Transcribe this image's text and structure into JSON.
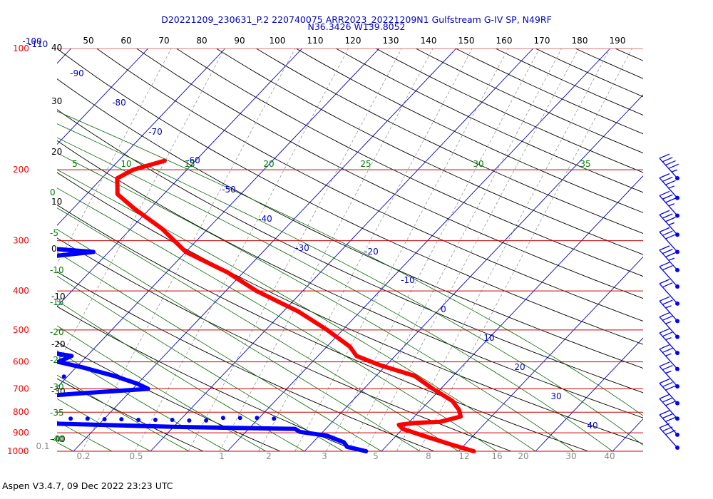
{
  "title": {
    "line1": "D20221209_230631_P.2 220740075 ARR2023_20221209N1 Gulfstream G-IV SP, N49RF",
    "line2": "N36.3426 W139.8052"
  },
  "footer": "Aspen V3.4.7, 09 Dec 2022  23:23 UTC",
  "colors": {
    "temperature": "#ff0000",
    "dewpoint": "#0000ff",
    "isobar": "#cc0000",
    "isotherm": "#0000cc",
    "dry_adiabat": "#000000",
    "moist_adiabat": "#006600",
    "mixing_ratio": "#888888",
    "title": "#0000cc"
  },
  "chart_data": {
    "type": "line",
    "chart_kind": "skew-T log-P sounding",
    "y_axis": {
      "quantity": "pressure (hPa)",
      "scale": "log",
      "range": [
        100,
        1000
      ]
    },
    "isobars": [
      {
        "p": 100,
        "label": "100"
      },
      {
        "p": 200,
        "label": "200"
      },
      {
        "p": 300,
        "label": "300"
      },
      {
        "p": 400,
        "label": "400"
      },
      {
        "p": 500,
        "label": "500"
      },
      {
        "p": 600,
        "label": "600"
      },
      {
        "p": 700,
        "label": "700"
      },
      {
        "p": 800,
        "label": "800"
      },
      {
        "p": 900,
        "label": "900"
      },
      {
        "p": 1000,
        "label": "1000"
      }
    ],
    "isotherm_labels": [
      "-110",
      "-100",
      "-90",
      "-80",
      "-70",
      "-60",
      "-50",
      "-40",
      "-30",
      "-20",
      "-10",
      "0",
      "10",
      "20",
      "30",
      "40"
    ],
    "top_scale_labels": [
      "50",
      "60",
      "70",
      "80",
      "90",
      "100",
      "110",
      "120",
      "130",
      "140",
      "150",
      "160",
      "170",
      "180",
      "190"
    ],
    "dry_adiabat_labels": [
      "40",
      "30",
      "20",
      "10",
      "0",
      "-10",
      "-20",
      "-30",
      "-40"
    ],
    "moist_adiabat_labels": [
      "5",
      "10",
      "15",
      "20",
      "25",
      "30",
      "35",
      "0",
      "-5",
      "-10",
      "-15",
      "-20",
      "-25",
      "-30",
      "-35",
      "-40"
    ],
    "mixing_ratio_labels": [
      "0.1",
      "0.2",
      "0.5",
      "1",
      "2",
      "3",
      "5",
      "8",
      "12",
      "16",
      "20",
      "30",
      "40"
    ],
    "temperature_profile": [
      {
        "p": 190,
        "t": -64
      },
      {
        "p": 200,
        "t": -67
      },
      {
        "p": 210,
        "t": -68
      },
      {
        "p": 230,
        "t": -66
      },
      {
        "p": 250,
        "t": -62
      },
      {
        "p": 280,
        "t": -56
      },
      {
        "p": 320,
        "t": -50
      },
      {
        "p": 360,
        "t": -42
      },
      {
        "p": 400,
        "t": -36
      },
      {
        "p": 450,
        "t": -28
      },
      {
        "p": 500,
        "t": -22
      },
      {
        "p": 550,
        "t": -17
      },
      {
        "p": 580,
        "t": -15
      },
      {
        "p": 610,
        "t": -11
      },
      {
        "p": 650,
        "t": -5
      },
      {
        "p": 700,
        "t": -1
      },
      {
        "p": 750,
        "t": 3
      },
      {
        "p": 790,
        "t": 5
      },
      {
        "p": 820,
        "t": 6
      },
      {
        "p": 845,
        "t": 4
      },
      {
        "p": 850,
        "t": 1
      },
      {
        "p": 860,
        "t": -1
      },
      {
        "p": 880,
        "t": 0
      },
      {
        "p": 920,
        "t": 4
      },
      {
        "p": 960,
        "t": 8
      },
      {
        "p": 1000,
        "t": 12
      }
    ],
    "dewpoint_profile": [
      {
        "p": 220,
        "t": -81
      },
      {
        "p": 230,
        "t": -80
      },
      {
        "p": 240,
        "t": -77
      },
      {
        "p": 260,
        "t": -75
      },
      {
        "p": 280,
        "t": -76
      },
      {
        "p": 300,
        "t": -73
      },
      {
        "p": 315,
        "t": -67
      },
      {
        "p": 320,
        "t": -62
      },
      {
        "p": 330,
        "t": -68
      },
      {
        "p": 340,
        "t": -76
      },
      {
        "p": 370,
        "t": -78
      },
      {
        "p": 400,
        "t": -76
      },
      {
        "p": 430,
        "t": -72
      },
      {
        "p": 440,
        "t": -64
      },
      {
        "p": 450,
        "t": -71
      },
      {
        "p": 470,
        "t": -64
      },
      {
        "p": 490,
        "t": -63
      },
      {
        "p": 510,
        "t": -62
      },
      {
        "p": 540,
        "t": -65
      },
      {
        "p": 560,
        "t": -58
      },
      {
        "p": 580,
        "t": -52
      },
      {
        "p": 600,
        "t": -53
      },
      {
        "p": 620,
        "t": -49
      },
      {
        "p": 650,
        "t": -44
      },
      {
        "p": 680,
        "t": -40
      },
      {
        "p": 700,
        "t": -38
      },
      {
        "p": 720,
        "t": -47
      },
      {
        "p": 750,
        "t": -58
      },
      {
        "p": 780,
        "t": -61
      },
      {
        "p": 800,
        "t": -62
      },
      {
        "p": 820,
        "t": -50
      },
      {
        "p": 850,
        "t": -50
      },
      {
        "p": 870,
        "t": -30
      },
      {
        "p": 880,
        "t": -14
      },
      {
        "p": 895,
        "t": -13
      },
      {
        "p": 915,
        "t": -9
      },
      {
        "p": 950,
        "t": -6
      },
      {
        "p": 975,
        "t": -5
      },
      {
        "p": 1000,
        "t": -2
      }
    ],
    "dewpoint_scatter_bands": [
      {
        "p": 660,
        "t_from": -92,
        "t_to": -50
      },
      {
        "p": 845,
        "t_from": -66,
        "t_to": -16
      }
    ],
    "wind_barbs": [
      {
        "p": 210,
        "speed_kt": 35
      },
      {
        "p": 235,
        "speed_kt": 25
      },
      {
        "p": 260,
        "speed_kt": 25
      },
      {
        "p": 290,
        "speed_kt": 25
      },
      {
        "p": 320,
        "speed_kt": 30
      },
      {
        "p": 355,
        "speed_kt": 25
      },
      {
        "p": 390,
        "speed_kt": 20
      },
      {
        "p": 430,
        "speed_kt": 20
      },
      {
        "p": 475,
        "speed_kt": 15
      },
      {
        "p": 520,
        "speed_kt": 15
      },
      {
        "p": 570,
        "speed_kt": 15
      },
      {
        "p": 625,
        "speed_kt": 15
      },
      {
        "p": 690,
        "speed_kt": 15
      },
      {
        "p": 760,
        "speed_kt": 30
      },
      {
        "p": 830,
        "speed_kt": 30
      },
      {
        "p": 910,
        "speed_kt": 30
      },
      {
        "p": 980,
        "speed_kt": 30
      }
    ]
  }
}
